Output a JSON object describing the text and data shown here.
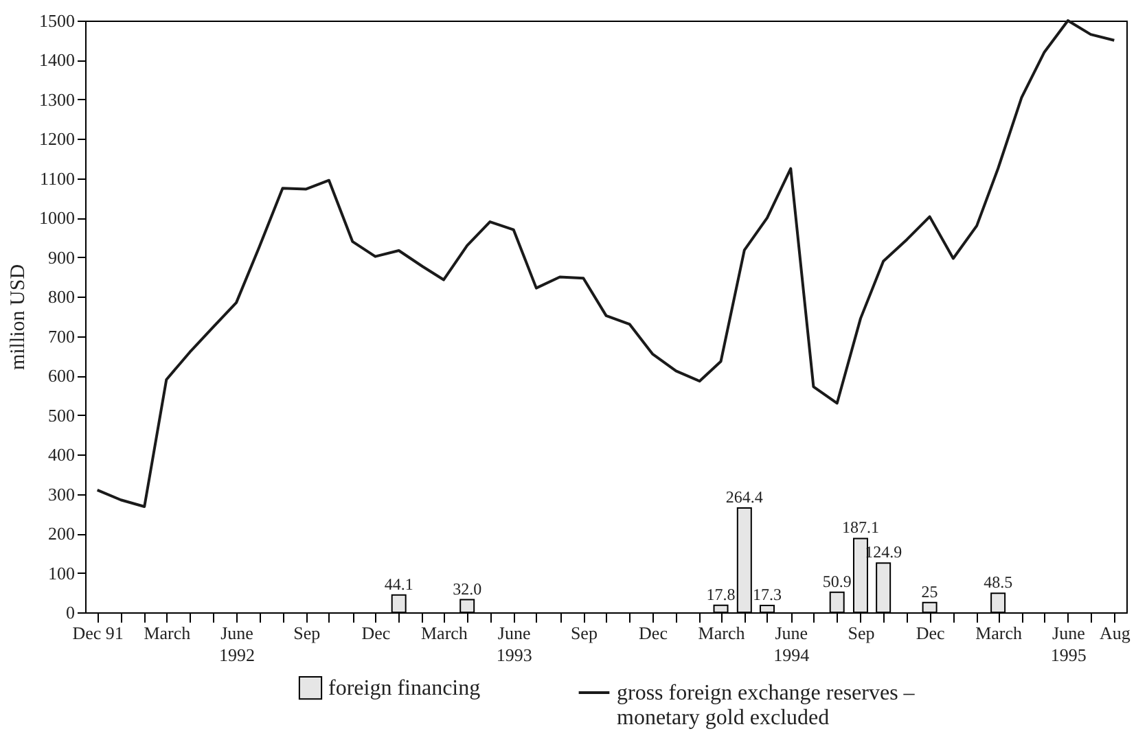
{
  "chart_data": {
    "type": "bar",
    "ylabel": "million USD",
    "xlim": [
      "1991-11-15",
      "1995-08-17"
    ],
    "xticks": [
      {
        "value": "1991-12",
        "label": "Dec 91"
      },
      {
        "value": "1992-01",
        "label": null
      },
      {
        "value": "1992-02",
        "label": null
      },
      {
        "value": "1992-03",
        "label": "March"
      },
      {
        "value": "1992-04",
        "label": null
      },
      {
        "value": "1992-05",
        "label": null
      },
      {
        "value": "1992-06",
        "label": "June\n1992"
      },
      {
        "value": "1992-07",
        "label": null
      },
      {
        "value": "1992-08",
        "label": null
      },
      {
        "value": "1992-09",
        "label": "Sep"
      },
      {
        "value": "1992-10",
        "label": null
      },
      {
        "value": "1992-11",
        "label": null
      },
      {
        "value": "1992-12",
        "label": "Dec"
      },
      {
        "value": "1993-01",
        "label": null
      },
      {
        "value": "1993-02",
        "label": null
      },
      {
        "value": "1993-03",
        "label": "March"
      },
      {
        "value": "1993-04",
        "label": null
      },
      {
        "value": "1993-05",
        "label": null
      },
      {
        "value": "1993-06",
        "label": "June\n1993"
      },
      {
        "value": "1993-07",
        "label": null
      },
      {
        "value": "1993-08",
        "label": null
      },
      {
        "value": "1993-09",
        "label": "Sep"
      },
      {
        "value": "1993-10",
        "label": null
      },
      {
        "value": "1993-11",
        "label": null
      },
      {
        "value": "1993-12",
        "label": "Dec"
      },
      {
        "value": "1994-01",
        "label": null
      },
      {
        "value": "1994-02",
        "label": null
      },
      {
        "value": "1994-03",
        "label": "March"
      },
      {
        "value": "1994-04",
        "label": null
      },
      {
        "value": "1994-05",
        "label": null
      },
      {
        "value": "1994-06",
        "label": "June\n1994"
      },
      {
        "value": "1994-07",
        "label": null
      },
      {
        "value": "1994-08",
        "label": null
      },
      {
        "value": "1994-09",
        "label": "Sep"
      },
      {
        "value": "1994-10",
        "label": null
      },
      {
        "value": "1994-11",
        "label": null
      },
      {
        "value": "1994-12",
        "label": "Dec"
      },
      {
        "value": "1995-01",
        "label": null
      },
      {
        "value": "1995-02",
        "label": null
      },
      {
        "value": "1995-03",
        "label": "March"
      },
      {
        "value": "1995-04",
        "label": null
      },
      {
        "value": "1995-05",
        "label": null
      },
      {
        "value": "1995-06",
        "label": "June\n1995"
      },
      {
        "value": "1995-07",
        "label": null
      },
      {
        "value": "1995-08",
        "label": "Aug"
      }
    ],
    "ylim": [
      0,
      1500
    ],
    "yticks": [
      0,
      100,
      200,
      300,
      400,
      500,
      600,
      700,
      800,
      900,
      1000,
      1100,
      1200,
      1300,
      1400,
      1500
    ],
    "legend": "bottom",
    "series": [
      {
        "name": "foreign financing",
        "color": "#e6e6e6",
        "x": [
          "1993-01",
          "1993-04",
          "1994-03",
          "1994-04",
          "1994-05",
          "1994-08",
          "1994-09",
          "1994-10",
          "1994-12",
          "1995-03"
        ],
        "values": [
          44.1,
          32.0,
          17.8,
          264.4,
          17.3,
          50.9,
          187.1,
          124.9,
          25,
          48.5
        ],
        "value_labels": [
          "44.1",
          "32.0",
          "17.8",
          "264.4",
          "17.3",
          "50.9",
          "187.1",
          "124.9",
          "25",
          "48.5"
        ]
      },
      {
        "name": "gross foreign exchange reserves – monetary gold excluded",
        "type": "line",
        "color": "#1a1a1a",
        "x": [
          "1991-12",
          "1992-01",
          "1992-02",
          "1992-03",
          "1992-04",
          "1992-05",
          "1992-06",
          "1992-07",
          "1992-08",
          "1992-09",
          "1992-10",
          "1992-11",
          "1992-12",
          "1993-01",
          "1993-02",
          "1993-03",
          "1993-04",
          "1993-05",
          "1993-06",
          "1993-07",
          "1993-08",
          "1993-09",
          "1993-10",
          "1993-11",
          "1993-12",
          "1994-01",
          "1994-02",
          "1994-03",
          "1994-04",
          "1994-05",
          "1994-06",
          "1994-07",
          "1994-08",
          "1994-09",
          "1994-10",
          "1994-11",
          "1994-12",
          "1995-01",
          "1995-02",
          "1995-03",
          "1995-04",
          "1995-05",
          "1995-06",
          "1995-07",
          "1995-08"
        ],
        "values": [
          310,
          285,
          268,
          590,
          660,
          722,
          785,
          925,
          1075,
          1073,
          1095,
          940,
          902,
          917,
          877,
          843,
          930,
          990,
          970,
          822,
          850,
          847,
          752,
          730,
          655,
          612,
          586,
          636,
          918,
          1000,
          1125,
          572,
          530,
          745,
          890,
          945,
          1003,
          897,
          980,
          1125,
          1305,
          1420,
          1500,
          1465,
          1450
        ]
      }
    ]
  }
}
